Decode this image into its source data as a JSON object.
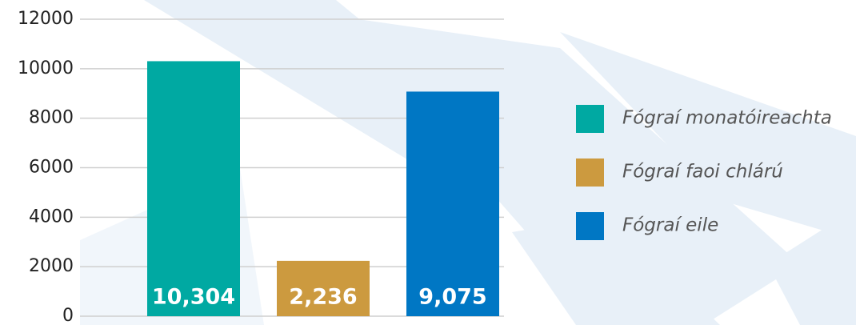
{
  "chart_data": {
    "type": "bar",
    "series": [
      {
        "name": "Fógraí monatóireachta",
        "color": "#00a9a2",
        "values": [
          10304
        ],
        "value_labels": [
          "10,304"
        ]
      },
      {
        "name": "Fógraí faoi chlárú",
        "color": "#cc9a3f",
        "values": [
          2236
        ],
        "value_labels": [
          "2,236"
        ]
      },
      {
        "name": "Fógraí eile",
        "color": "#0077c4",
        "values": [
          9075
        ],
        "value_labels": [
          "9,075"
        ]
      }
    ],
    "ylim": [
      0,
      12000
    ],
    "yticks": [
      0,
      2000,
      4000,
      6000,
      8000,
      10000,
      12000
    ],
    "grid": true,
    "legend": "right"
  }
}
